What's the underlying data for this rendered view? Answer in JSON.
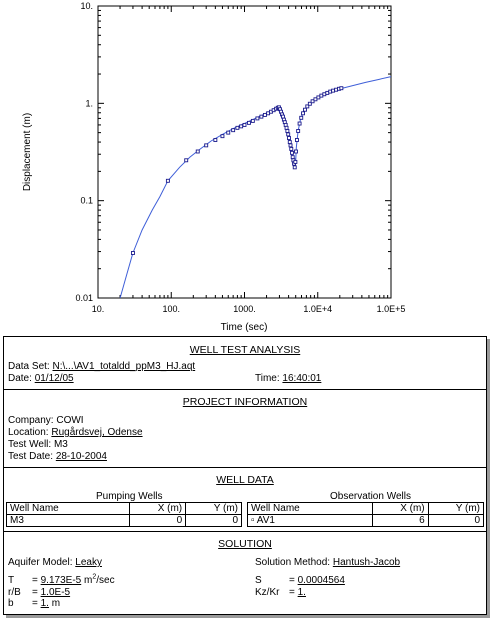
{
  "chart_data": {
    "type": "scatter",
    "x_scale": "log",
    "y_scale": "log",
    "xlim": [
      10,
      100000
    ],
    "ylim": [
      0.01,
      10
    ],
    "xlabel": "Time (sec)",
    "ylabel": "Displacement (m)",
    "x_ticks": [
      "10.",
      "100.",
      "1000.",
      "1.0E+4",
      "1.0E+5"
    ],
    "y_ticks": [
      "0.01",
      "0.1",
      "1.",
      "10."
    ],
    "observed": [
      [
        30,
        0.029
      ],
      [
        90,
        0.16
      ],
      [
        160,
        0.26
      ],
      [
        230,
        0.32
      ],
      [
        300,
        0.37
      ],
      [
        400,
        0.42
      ],
      [
        500,
        0.46
      ],
      [
        600,
        0.5
      ],
      [
        700,
        0.53
      ],
      [
        800,
        0.56
      ],
      [
        900,
        0.58
      ],
      [
        1000,
        0.6
      ],
      [
        1150,
        0.63
      ],
      [
        1300,
        0.66
      ],
      [
        1500,
        0.7
      ],
      [
        1700,
        0.73
      ],
      [
        1900,
        0.76
      ],
      [
        2100,
        0.79
      ],
      [
        2300,
        0.82
      ],
      [
        2500,
        0.85
      ],
      [
        2700,
        0.88
      ],
      [
        2850,
        0.9
      ],
      [
        2950,
        0.91
      ],
      [
        3050,
        0.87
      ],
      [
        3150,
        0.82
      ],
      [
        3250,
        0.77
      ],
      [
        3350,
        0.73
      ],
      [
        3450,
        0.68
      ],
      [
        3550,
        0.64
      ],
      [
        3650,
        0.6
      ],
      [
        3750,
        0.56
      ],
      [
        3850,
        0.52
      ],
      [
        3950,
        0.48
      ],
      [
        4050,
        0.44
      ],
      [
        4150,
        0.4
      ],
      [
        4250,
        0.37
      ],
      [
        4350,
        0.34
      ],
      [
        4450,
        0.31
      ],
      [
        4550,
        0.28
      ],
      [
        4650,
        0.26
      ],
      [
        4750,
        0.24
      ],
      [
        4850,
        0.22
      ],
      [
        4950,
        0.25
      ],
      [
        5050,
        0.32
      ],
      [
        5200,
        0.42
      ],
      [
        5400,
        0.52
      ],
      [
        5650,
        0.62
      ],
      [
        5950,
        0.71
      ],
      [
        6300,
        0.79
      ],
      [
        6700,
        0.86
      ],
      [
        7200,
        0.93
      ],
      [
        7800,
        0.99
      ],
      [
        8500,
        1.05
      ],
      [
        9300,
        1.1
      ],
      [
        10200,
        1.15
      ],
      [
        11200,
        1.2
      ],
      [
        12300,
        1.24
      ],
      [
        13500,
        1.28
      ],
      [
        14800,
        1.32
      ],
      [
        16200,
        1.35
      ],
      [
        17800,
        1.38
      ],
      [
        19500,
        1.41
      ],
      [
        21000,
        1.43
      ]
    ],
    "fitted_curve": [
      [
        20,
        0.01
      ],
      [
        25,
        0.018
      ],
      [
        30,
        0.029
      ],
      [
        40,
        0.05
      ],
      [
        55,
        0.08
      ],
      [
        70,
        0.11
      ],
      [
        90,
        0.16
      ],
      [
        130,
        0.22
      ],
      [
        180,
        0.28
      ],
      [
        250,
        0.34
      ],
      [
        350,
        0.41
      ],
      [
        500,
        0.48
      ],
      [
        700,
        0.55
      ],
      [
        1000,
        0.62
      ],
      [
        1400,
        0.7
      ],
      [
        1900,
        0.78
      ],
      [
        2500,
        0.86
      ],
      [
        2950,
        0.93
      ],
      [
        3200,
        0.8
      ],
      [
        3500,
        0.66
      ],
      [
        3800,
        0.52
      ],
      [
        4100,
        0.4
      ],
      [
        4400,
        0.3
      ],
      [
        4700,
        0.24
      ],
      [
        4950,
        0.22
      ],
      [
        5100,
        0.35
      ],
      [
        5400,
        0.52
      ],
      [
        5800,
        0.68
      ],
      [
        6300,
        0.8
      ],
      [
        7000,
        0.91
      ],
      [
        8000,
        1.01
      ],
      [
        9500,
        1.1
      ],
      [
        11500,
        1.19
      ],
      [
        14000,
        1.27
      ],
      [
        17000,
        1.34
      ],
      [
        21000,
        1.42
      ],
      [
        30000,
        1.52
      ],
      [
        45000,
        1.64
      ],
      [
        70000,
        1.77
      ],
      [
        100000,
        1.88
      ]
    ],
    "colors": {
      "observed": "#1a1a8c",
      "curve": "#3f5fd8"
    }
  },
  "report": {
    "well_test_title": "WELL TEST ANALYSIS",
    "data_set_label": "Data Set:",
    "data_set_value": "N:\\...\\AV1_totaldd_ppM3_HJ.aqt",
    "date_label": "Date:",
    "date_value": "01/12/05",
    "time_label": "Time:",
    "time_value": "16:40:01",
    "project_title": "PROJECT INFORMATION",
    "company_label": "Company:",
    "company_value": "COWI",
    "location_label": "Location:",
    "location_value": "Rugårdsvej, Odense",
    "test_well_label": "Test Well:",
    "test_well_value": "M3",
    "test_date_label": "Test Date:",
    "test_date_value": "28-10-2004",
    "well_data_title": "WELL DATA",
    "pumping_title": "Pumping Wells",
    "observation_title": "Observation Wells",
    "col_well_name": "Well Name",
    "col_x": "X (m)",
    "col_y": "Y (m)",
    "pumping_rows": [
      {
        "name": "M3",
        "x": "0",
        "y": "0"
      }
    ],
    "observation_rows": [
      {
        "marker": "▫",
        "name": "AV1",
        "x": "6",
        "y": "0"
      }
    ],
    "solution_title": "SOLUTION",
    "aquifer_label": "Aquifer Model:",
    "aquifer_value": "Leaky",
    "method_label": "Solution Method:",
    "method_value": "Hantush-Jacob",
    "T_label": "T",
    "T_value": "9.173E-5",
    "T_unit_base": "m",
    "T_unit_sup": "2",
    "T_unit_tail": "/sec",
    "S_label": "S",
    "S_value": "0.0004564",
    "rB_label": "r/B",
    "rB_value": "1.0E-5",
    "KzKr_label": "Kz/Kr",
    "KzKr_value": "1.",
    "b_label": "b",
    "b_value": "1.",
    "b_unit": "m",
    "eq": "="
  }
}
